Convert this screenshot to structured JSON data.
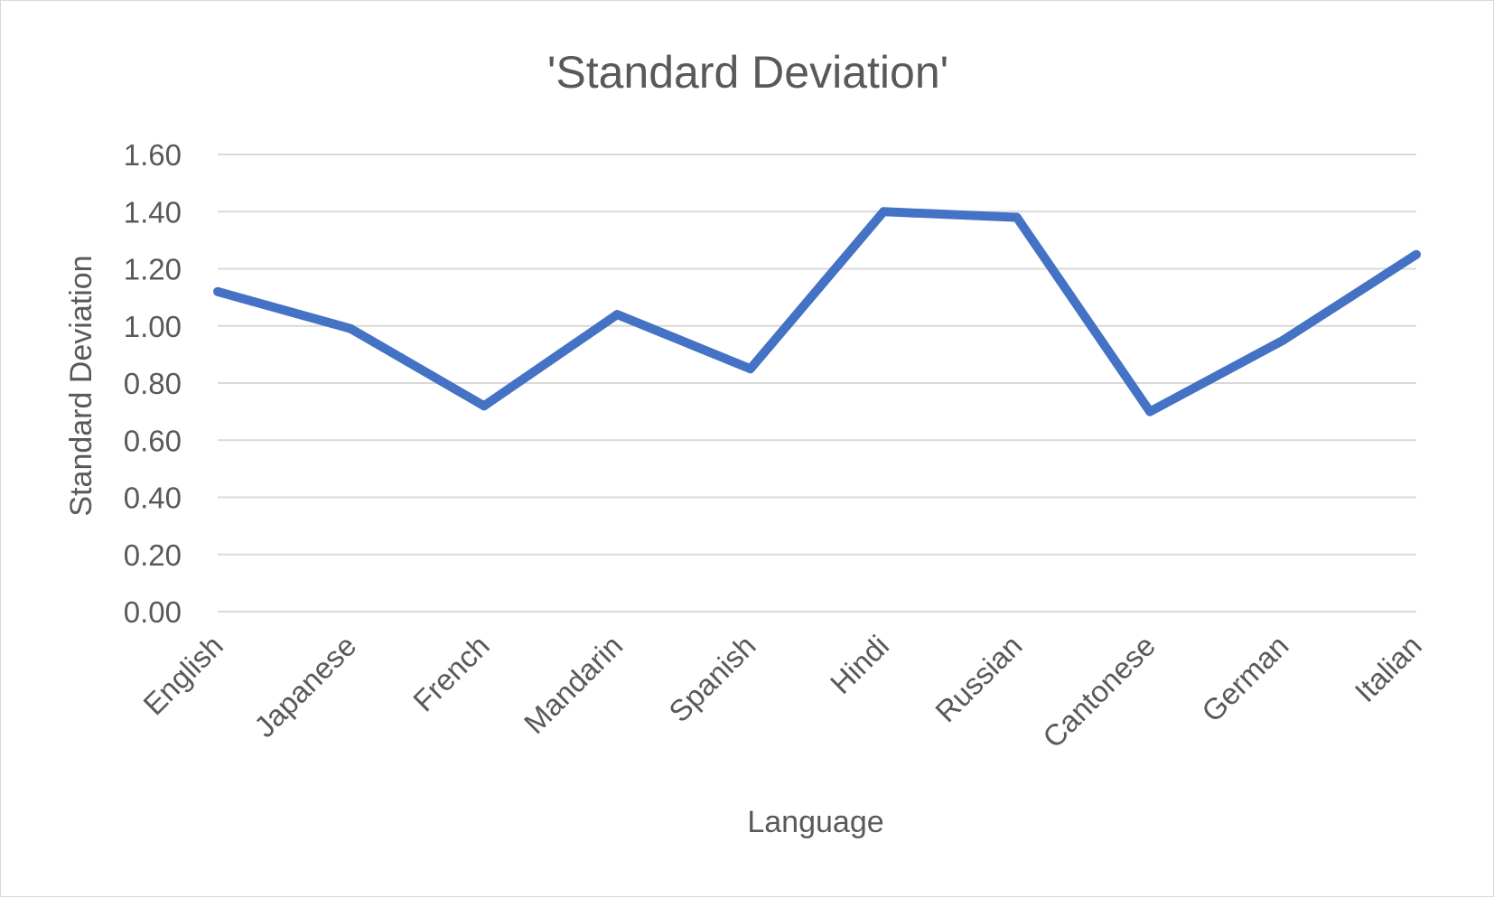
{
  "chart_data": {
    "type": "line",
    "title": "'Standard Deviation'",
    "xlabel": "Language",
    "ylabel": "Standard Deviation",
    "categories": [
      "English",
      "Japanese",
      "French",
      "Mandarin",
      "Spanish",
      "Hindi",
      "Russian",
      "Cantonese",
      "German",
      "Italian"
    ],
    "series": [
      {
        "values": [
          1.12,
          0.99,
          0.72,
          1.04,
          0.85,
          1.4,
          1.38,
          0.7,
          0.95,
          1.25
        ]
      }
    ],
    "ylim": [
      0,
      1.6
    ],
    "yticks": [
      "0.00",
      "0.20",
      "0.40",
      "0.60",
      "0.80",
      "1.00",
      "1.20",
      "1.40",
      "1.60"
    ],
    "grid": true,
    "legend": "none",
    "colors": {
      "line": "#4472c4",
      "grid": "#d9d9d9",
      "text": "#595959"
    }
  }
}
